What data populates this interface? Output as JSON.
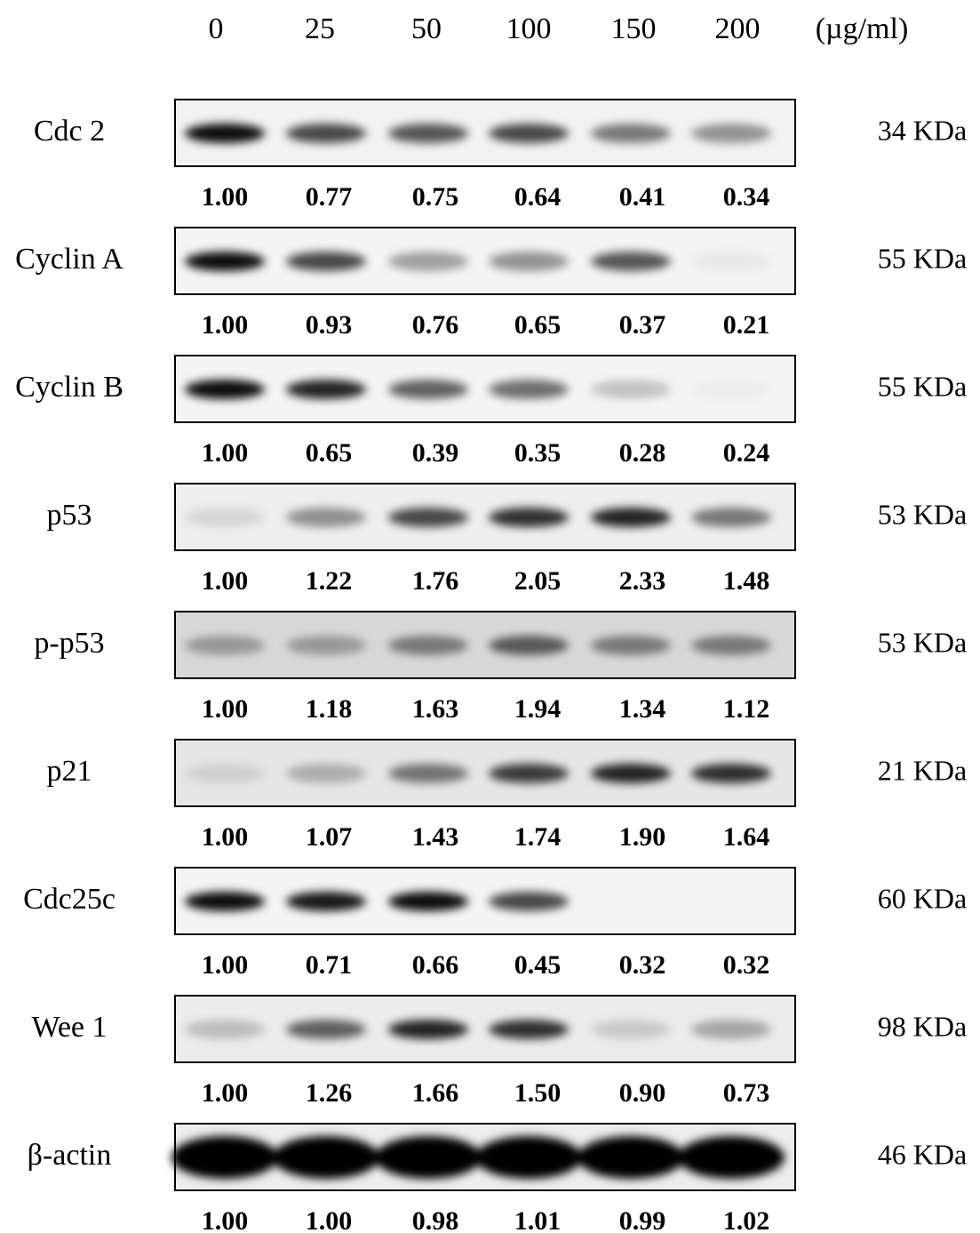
{
  "header": {
    "concentrations": [
      "0",
      "25",
      "50",
      "100",
      "150",
      "200"
    ],
    "unit": "(µg/ml)"
  },
  "blots": [
    {
      "label": "Cdc 2",
      "size": "34 KDa",
      "values": [
        "1.00",
        "0.77",
        "0.75",
        "0.64",
        "0.41",
        "0.34"
      ]
    },
    {
      "label": "Cyclin A",
      "size": "55 KDa",
      "values": [
        "1.00",
        "0.93",
        "0.76",
        "0.65",
        "0.37",
        "0.21"
      ]
    },
    {
      "label": "Cyclin B",
      "size": "55 KDa",
      "values": [
        "1.00",
        "0.65",
        "0.39",
        "0.35",
        "0.28",
        "0.24"
      ]
    },
    {
      "label": "p53",
      "size": "53 KDa",
      "values": [
        "1.00",
        "1.22",
        "1.76",
        "2.05",
        "2.33",
        "1.48"
      ]
    },
    {
      "label": "p-p53",
      "size": "53 KDa",
      "values": [
        "1.00",
        "1.18",
        "1.63",
        "1.94",
        "1.34",
        "1.12"
      ]
    },
    {
      "label": "p21",
      "size": "21 KDa",
      "values": [
        "1.00",
        "1.07",
        "1.43",
        "1.74",
        "1.90",
        "1.64"
      ]
    },
    {
      "label": "Cdc25c",
      "size": "60 KDa",
      "values": [
        "1.00",
        "0.71",
        "0.66",
        "0.45",
        "0.32",
        "0.32"
      ]
    },
    {
      "label": "Wee 1",
      "size": "98 KDa",
      "values": [
        "1.00",
        "1.26",
        "1.66",
        "1.50",
        "0.90",
        "0.73"
      ]
    },
    {
      "label": "β-actin",
      "size": "46 KDa",
      "values": [
        "1.00",
        "1.00",
        "0.98",
        "1.01",
        "0.99",
        "1.02"
      ]
    }
  ]
}
